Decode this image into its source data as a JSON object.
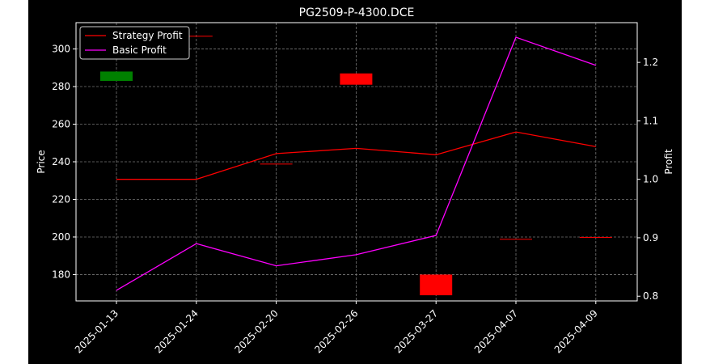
{
  "chart_data": {
    "type": "line",
    "title": "PG2509-P-4300.DCE",
    "xlabel": "",
    "ylabel_left": "Price",
    "ylabel_right": "Profit",
    "categories": [
      "2025-01-13",
      "2025-01-24",
      "2025-02-20",
      "2025-02-26",
      "2025-03-27",
      "2025-04-07",
      "2025-04-09"
    ],
    "ylim_left": [
      166,
      314
    ],
    "yticks_left": [
      180,
      200,
      220,
      240,
      260,
      280,
      300
    ],
    "ylim_right": [
      0.792,
      1.268
    ],
    "yticks_right": [
      0.8,
      0.9,
      1.0,
      1.1,
      1.2
    ],
    "grid": true,
    "legend_position": "upper-left",
    "background": "#000000",
    "series": [
      {
        "name": "Strategy Profit",
        "axis": "right",
        "color": "#ff0000",
        "values": [
          1.0,
          1.0,
          1.044,
          1.053,
          1.042,
          1.081,
          1.056
        ]
      },
      {
        "name": "Basic Profit",
        "axis": "right",
        "color": "#ff00ff",
        "values": [
          0.81,
          0.89,
          0.852,
          0.871,
          0.904,
          1.243,
          1.195
        ]
      }
    ],
    "candles": [
      {
        "index": 0,
        "open": 283,
        "close": 288,
        "color": "#008000"
      },
      {
        "index": 1,
        "open": 307,
        "close": 307,
        "color": "#ff0000"
      },
      {
        "index": 2,
        "open": 239,
        "close": 239,
        "color": "#ff0000"
      },
      {
        "index": 3,
        "open": 287,
        "close": 281,
        "color": "#ff0000"
      },
      {
        "index": 4,
        "open": 180,
        "close": 169,
        "color": "#ff0000"
      },
      {
        "index": 5,
        "open": 199,
        "close": 199,
        "color": "#ff0000"
      },
      {
        "index": 6,
        "open": 200,
        "close": 200,
        "color": "#ff0000"
      }
    ]
  }
}
